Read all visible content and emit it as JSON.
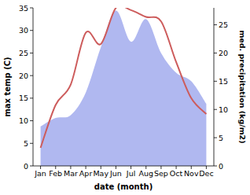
{
  "chart_data": {
    "type": "line",
    "x_label": "date (month)",
    "y_label": "max temp (C)",
    "y2_label": "med. precipitation (kg/m2)",
    "categories": [
      "Jan",
      "Feb",
      "Mar",
      "Apr",
      "May",
      "Jun",
      "Jul",
      "Aug",
      "Sep",
      "Oct",
      "Nov",
      "Dec"
    ],
    "series": [
      {
        "name": "max temp",
        "type": "line",
        "color": "#cd5c5c",
        "axis": "y",
        "values": [
          4,
          13.5,
          18,
          29.5,
          27,
          35,
          34.5,
          33,
          32,
          23,
          15,
          11.5
        ]
      },
      {
        "name": "med. precipitation",
        "type": "area",
        "color": "#b0b8f0",
        "axis": "y2",
        "values": [
          7,
          8.5,
          9,
          13,
          21,
          27.5,
          22,
          26,
          20,
          16.5,
          15,
          11
        ]
      }
    ],
    "ylim": [
      0,
      35
    ],
    "yticks": [
      0,
      5,
      10,
      15,
      20,
      25,
      30,
      35
    ],
    "y2lim": [
      0,
      28
    ],
    "y2ticks": [
      0,
      5,
      10,
      15,
      20,
      25
    ],
    "grid": false
  }
}
